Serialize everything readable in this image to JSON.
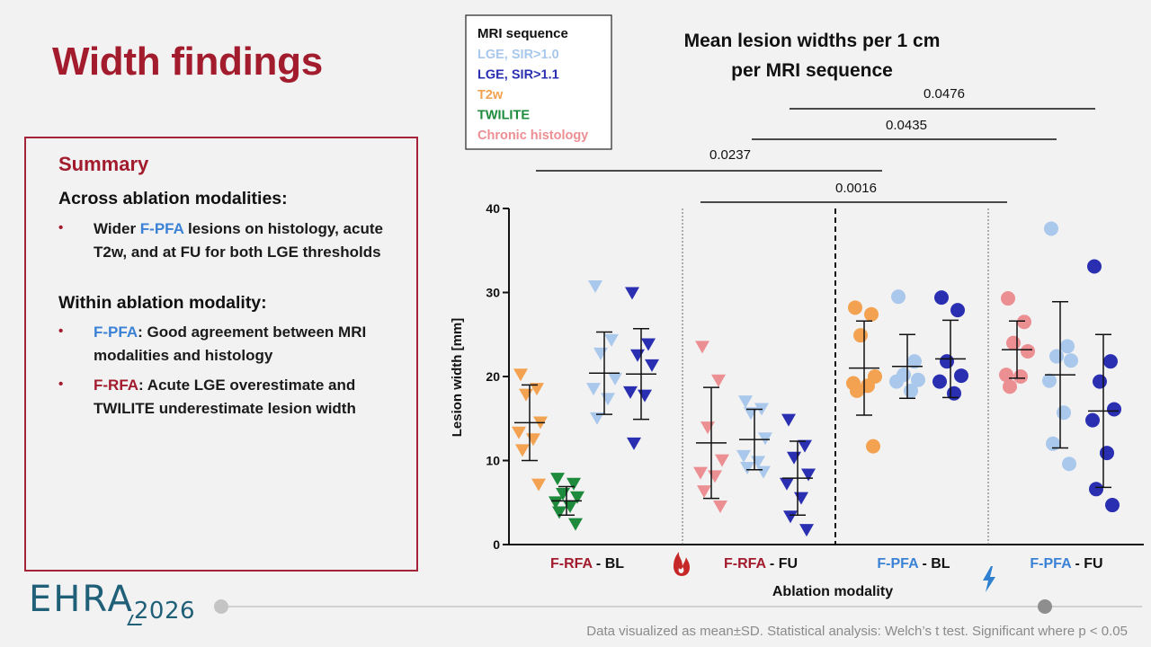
{
  "slide_title": "Width findings",
  "summary": {
    "heading": "Summary",
    "across_heading": "Across ablation modalities:",
    "across_bullet": {
      "pre": "Wider ",
      "highlight": "F-PFA",
      "line1_rest": " lesions on histology, acute",
      "line2": "T2w, and at FU for both LGE thresholds"
    },
    "within_heading": "Within ablation modality:",
    "bullet_pfa": {
      "label": "F-PFA",
      "line1_rest": ": Good agreement between MRI",
      "line2": "modalities and histology"
    },
    "bullet_rfa": {
      "label": "F-RFA",
      "line1_rest": ": Acute LGE overestimate and",
      "line2": "TWILITE underestimate lesion width"
    },
    "bullet_symbol": "•"
  },
  "footer": {
    "logo_main": "EHRA",
    "logo_year": "2026",
    "note": "Data visualized as mean±SD. Statistical analysis: Welch’s t test. Significant where p < 0.05"
  },
  "colors": {
    "brand_red": "#a21c2e",
    "pfa_blue": "#3b82d6",
    "lge10": "#a9c8ec",
    "lge11": "#2a2fb2",
    "t2w": "#f2a250",
    "twilite": "#1e8a3c",
    "histology": "#ec8f93"
  },
  "chart_data": {
    "type": "scatter",
    "title_line1": "Mean lesion widths per 1 cm",
    "title_line2": "per MRI sequence",
    "ylabel": "Lesion width [mm]",
    "xlabel": "Ablation modality",
    "ylim": [
      0,
      40
    ],
    "yticks": [
      0,
      10,
      20,
      30,
      40
    ],
    "legend": {
      "title": "MRI sequence",
      "entries": [
        {
          "label": "LGE, SIR>1.0",
          "key": "lge10"
        },
        {
          "label": "LGE, SIR>1.1",
          "key": "lge11"
        },
        {
          "label": "T2w",
          "key": "t2w"
        },
        {
          "label": "TWILITE",
          "key": "twilite"
        },
        {
          "label": "Chronic histology",
          "key": "histology"
        }
      ]
    },
    "groups": [
      {
        "modality": "F-RFA",
        "timepoint": "BL",
        "modality_key": "rfa",
        "icon": "flame-icon"
      },
      {
        "modality": "F-RFA",
        "timepoint": "FU",
        "modality_key": "rfa"
      },
      {
        "modality": "F-PFA",
        "timepoint": "BL",
        "modality_key": "pfa",
        "icon": "lightning-icon"
      },
      {
        "modality": "F-PFA",
        "timepoint": "FU",
        "modality_key": "pfa"
      }
    ],
    "series": [
      {
        "group": 0,
        "key": "t2w",
        "marker": "triangle",
        "mean": 14.5,
        "sd": 4.5,
        "values": [
          20.3,
          18.6,
          17.9,
          14.6,
          13.4,
          12.6,
          11.3,
          7.2
        ]
      },
      {
        "group": 0,
        "key": "twilite",
        "marker": "triangle",
        "mean": 5.2,
        "sd": 1.7,
        "values": [
          7.9,
          7.3,
          6.1,
          5.7,
          5.1,
          4.6,
          3.9,
          2.5
        ]
      },
      {
        "group": 0,
        "key": "lge10",
        "marker": "triangle",
        "mean": 20.4,
        "sd": 4.9,
        "values": [
          30.8,
          24.4,
          22.8,
          19.8,
          18.6,
          17.4,
          15.1
        ]
      },
      {
        "group": 0,
        "key": "lge11",
        "marker": "triangle",
        "mean": 20.3,
        "sd": 5.4,
        "values": [
          30.0,
          23.9,
          22.6,
          21.4,
          18.2,
          17.8,
          12.1
        ]
      },
      {
        "group": 1,
        "key": "histology",
        "marker": "triangle",
        "mean": 12.1,
        "sd": 6.6,
        "values": [
          23.6,
          19.6,
          14.0,
          10.1,
          8.6,
          8.2,
          6.4,
          4.6
        ]
      },
      {
        "group": 1,
        "key": "lge10",
        "marker": "triangle",
        "mean": 12.5,
        "sd": 3.6,
        "values": [
          17.1,
          16.2,
          15.7,
          12.7,
          10.6,
          9.9,
          9.2,
          8.7
        ]
      },
      {
        "group": 1,
        "key": "lge11",
        "marker": "triangle",
        "mean": 7.9,
        "sd": 4.4,
        "values": [
          14.9,
          11.8,
          10.4,
          8.4,
          7.3,
          5.6,
          3.4,
          1.8
        ]
      },
      {
        "group": 2,
        "key": "t2w",
        "marker": "circle",
        "mean": 21.0,
        "sd": 5.6,
        "values": [
          28.2,
          27.4,
          24.9,
          20.0,
          19.2,
          18.9,
          18.3,
          11.7
        ]
      },
      {
        "group": 2,
        "key": "lge10",
        "marker": "circle",
        "mean": 21.2,
        "sd": 3.8,
        "values": [
          29.5,
          21.8,
          20.2,
          19.6,
          19.4,
          18.3
        ]
      },
      {
        "group": 2,
        "key": "lge11",
        "marker": "circle",
        "mean": 22.1,
        "sd": 4.6,
        "values": [
          29.4,
          27.9,
          21.8,
          20.1,
          19.4,
          18.0
        ]
      },
      {
        "group": 3,
        "key": "histology",
        "marker": "circle",
        "mean": 23.2,
        "sd": 3.4,
        "values": [
          29.3,
          26.5,
          24.0,
          23.0,
          20.2,
          20.0,
          18.8
        ]
      },
      {
        "group": 3,
        "key": "lge10",
        "marker": "circle",
        "mean": 20.2,
        "sd": 8.7,
        "values": [
          37.6,
          23.6,
          22.4,
          21.9,
          19.5,
          15.7,
          12.0,
          9.6
        ]
      },
      {
        "group": 3,
        "key": "lge11",
        "marker": "circle",
        "mean": 15.9,
        "sd": 9.1,
        "values": [
          33.1,
          21.8,
          19.4,
          16.1,
          14.8,
          10.9,
          6.6,
          4.7
        ]
      }
    ],
    "significance": [
      {
        "from_group": 0,
        "to_group": 2,
        "p": "0.0237"
      },
      {
        "from_group": 1,
        "to_group": 3,
        "p": "0.0016"
      },
      {
        "from_group": 1,
        "to_group": 3,
        "p": "0.0435"
      },
      {
        "from_group": 1,
        "to_group": 3,
        "p": "0.0476"
      }
    ]
  }
}
